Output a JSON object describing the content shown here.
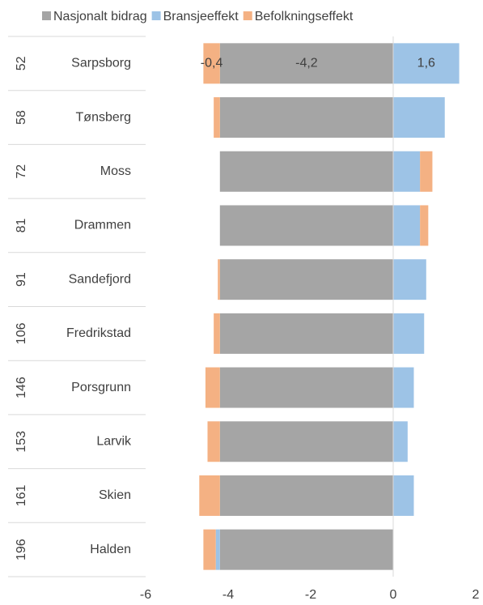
{
  "chart_data": {
    "type": "stacked-bar-horizontal",
    "categories": [
      "Sarpsborg",
      "Tønsberg",
      "Moss",
      "Drammen",
      "Sandefjord",
      "Fredrikstad",
      "Porsgrunn",
      "Larvik",
      "Skien",
      "Halden"
    ],
    "ranks": [
      52,
      58,
      72,
      81,
      91,
      106,
      146,
      153,
      161,
      196
    ],
    "series": [
      {
        "name": "Nasjonalt bidrag",
        "color": "#a5a5a5",
        "values": [
          -4.2,
          -4.2,
          -4.2,
          -4.2,
          -4.2,
          -4.2,
          -4.2,
          -4.2,
          -4.2,
          -4.2
        ],
        "value_labels": [
          "-4,2",
          null,
          null,
          null,
          null,
          null,
          null,
          null,
          null,
          null
        ]
      },
      {
        "name": "Bransjeeffekt",
        "color": "#9dc3e6",
        "values": [
          1.6,
          1.25,
          0.65,
          0.65,
          0.8,
          0.75,
          0.5,
          0.35,
          0.5,
          -0.1
        ],
        "value_labels": [
          "1,6",
          null,
          null,
          null,
          null,
          null,
          null,
          null,
          null,
          null
        ]
      },
      {
        "name": "Befolkningseffekt",
        "color": "#f4b183",
        "values": [
          -0.4,
          -0.15,
          0.3,
          0.2,
          -0.05,
          -0.15,
          -0.35,
          -0.3,
          -0.5,
          -0.3
        ],
        "value_labels": [
          "-0,4",
          null,
          null,
          null,
          null,
          null,
          null,
          null,
          null,
          null
        ]
      }
    ],
    "xlim": [
      -6,
      2
    ],
    "xticks": [
      -6,
      -4,
      -2,
      0,
      2
    ],
    "legend": "top"
  }
}
